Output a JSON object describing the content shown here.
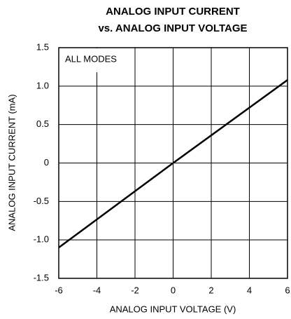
{
  "chart_data": {
    "type": "line",
    "title": [
      "ANALOG INPUT CURRENT",
      "vs. ANALOG INPUT VOLTAGE"
    ],
    "xlabel": "ANALOG INPUT VOLTAGE (V)",
    "ylabel": "ANALOG INPUT CURRENT (mA)",
    "annotation": "ALL MODES",
    "x": [
      -6,
      0,
      6
    ],
    "series": [
      {
        "color": "#000000",
        "values": [
          -1.1,
          0,
          1.08
        ]
      }
    ],
    "xlim": [
      -6,
      6
    ],
    "xticks": [
      -6,
      -4,
      -2,
      0,
      2,
      4,
      6
    ],
    "ylim": [
      -1.5,
      1.5
    ],
    "yticks": [
      {
        "value": -1.5,
        "label": "-1.5"
      },
      {
        "value": -1.0,
        "label": "-1.0"
      },
      {
        "value": -0.5,
        "label": "-0.5"
      },
      0,
      0.5,
      {
        "value": 1.0,
        "label": "1.0"
      },
      1.5
    ],
    "grid": true
  }
}
